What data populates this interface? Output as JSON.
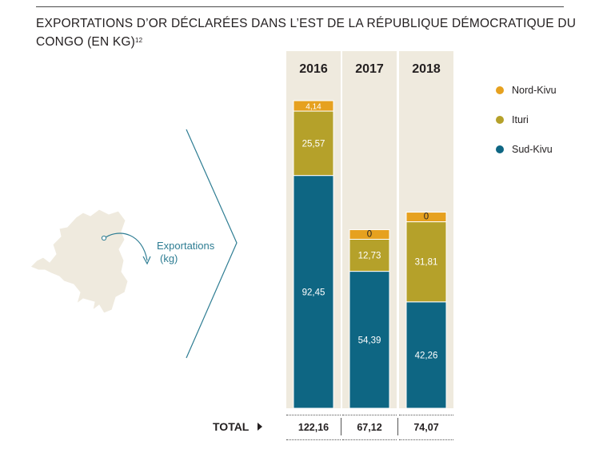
{
  "title": {
    "text": "EXPORTATIONS D’OR DÉCLARÉES DANS L’EST DE LA RÉPUBLIQUE DÉMOCRATIQUE DU CONGO (EN KG)",
    "footnote": "12"
  },
  "map_label": {
    "line1": "Exportations",
    "line2": "(kg)"
  },
  "legend": [
    {
      "name": "Nord-Kivu",
      "color": "#e6a11f"
    },
    {
      "name": "Ituri",
      "color": "#b5a12a"
    },
    {
      "name": "Sud-Kivu",
      "color": "#0e6683"
    }
  ],
  "total_label": "TOTAL",
  "chart_data": {
    "type": "bar",
    "stacked": true,
    "title": "EXPORTATIONS D’OR DÉCLARÉES DANS L’EST DE LA RÉPUBLIQUE DÉMOCRATIQUE DU CONGO (EN KG)",
    "unit": "kg",
    "categories": [
      "2016",
      "2017",
      "2018"
    ],
    "series": [
      {
        "name": "Sud-Kivu",
        "color": "#0e6683",
        "values": [
          92.45,
          54.39,
          42.26
        ],
        "labels": [
          "92,45",
          "54,39",
          "42,26"
        ]
      },
      {
        "name": "Ituri",
        "color": "#b5a12a",
        "values": [
          25.57,
          12.73,
          31.81
        ],
        "labels": [
          "25,57",
          "12,73",
          "31,81"
        ]
      },
      {
        "name": "Nord-Kivu",
        "color": "#e6a11f",
        "values": [
          4.14,
          0,
          0
        ],
        "labels": [
          "4,14",
          "0",
          "0"
        ]
      }
    ],
    "totals": [
      "122,16",
      "67,12",
      "74,07"
    ],
    "ylim": [
      0,
      122.16
    ]
  }
}
